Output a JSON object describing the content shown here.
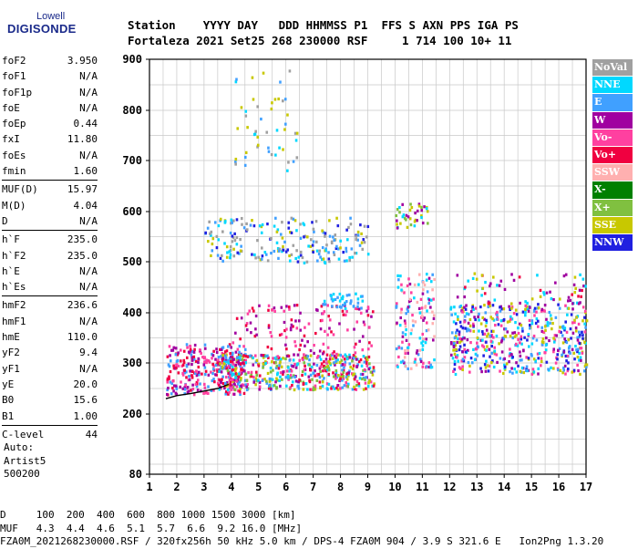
{
  "logo": {
    "top": "Lowell",
    "main": "DIGISONDE"
  },
  "header": {
    "labels": "Station    YYYY DAY   DDD HHMMSS P1  FFS S AXN PPS IGA PS",
    "values": "Fortaleza 2021 Set25 268 230000 RSF     1 714 100 10+ 11"
  },
  "params": {
    "group1": [
      {
        "k": "foF2",
        "v": "3.950"
      },
      {
        "k": "foF1",
        "v": "N/A"
      },
      {
        "k": "foF1p",
        "v": "N/A"
      },
      {
        "k": "foE",
        "v": "N/A"
      },
      {
        "k": "foEp",
        "v": "0.44"
      },
      {
        "k": "fxI",
        "v": "11.80"
      },
      {
        "k": "foEs",
        "v": "N/A"
      },
      {
        "k": "fmin",
        "v": "1.60"
      }
    ],
    "group2": [
      {
        "k": "MUF(D)",
        "v": "15.97"
      },
      {
        "k": "M(D)",
        "v": "4.04"
      },
      {
        "k": "D",
        "v": "N/A"
      }
    ],
    "group3": [
      {
        "k": "h`F",
        "v": "235.0"
      },
      {
        "k": "h`F2",
        "v": "235.0"
      },
      {
        "k": "h`E",
        "v": "N/A"
      },
      {
        "k": "h`Es",
        "v": "N/A"
      }
    ],
    "group4": [
      {
        "k": "hmF2",
        "v": "236.6"
      },
      {
        "k": "hmF1",
        "v": "N/A"
      },
      {
        "k": "hmE",
        "v": "110.0"
      },
      {
        "k": "yF2",
        "v": "9.4"
      },
      {
        "k": "yF1",
        "v": "N/A"
      },
      {
        "k": "yE",
        "v": "20.0"
      },
      {
        "k": "B0",
        "v": "15.6"
      },
      {
        "k": "B1",
        "v": "1.00"
      }
    ],
    "group5": [
      {
        "k": "C-level",
        "v": "44"
      }
    ],
    "auto_label": "Auto:",
    "artist": "Artist5",
    "artist_ver": "500200"
  },
  "bottom": {
    "d_row": "D     100  200  400  600  800 1000 1500 3000 [km]",
    "muf_row": "MUF   4.3  4.4  4.6  5.1  5.7  6.6  9.2 16.0 [MHz]",
    "file_row": "FZA0M_2021268230000.RSF / 320fx256h 50 kHz 5.0 km / DPS-4 FZA0M 904 / 3.9 S 321.6 E   Ion2Png 1.3.20"
  },
  "legend": [
    {
      "label": "NoVal",
      "color": "#a0a0a0"
    },
    {
      "label": "NNE",
      "color": "#00d8ff"
    },
    {
      "label": "E",
      "color": "#40a0ff"
    },
    {
      "label": "W",
      "color": "#a000a0"
    },
    {
      "label": "Vo-",
      "color": "#ff40a0"
    },
    {
      "label": "Vo+",
      "color": "#f00040"
    },
    {
      "label": "SSW",
      "color": "#ffb0b0"
    },
    {
      "label": "X-",
      "color": "#008000"
    },
    {
      "label": "X+",
      "color": "#80c040"
    },
    {
      "label": "SSE",
      "color": "#c8c800"
    },
    {
      "label": "NNW",
      "color": "#2020e0"
    }
  ],
  "chart_data": {
    "type": "scatter",
    "xlabel": "",
    "ylabel": "",
    "xlim": [
      1,
      17
    ],
    "ylim": [
      80,
      900
    ],
    "x_ticks": [
      "1",
      "2",
      "3",
      "4",
      "5",
      "6",
      "7",
      "8",
      "9",
      "10",
      "11",
      "12",
      "13",
      "14",
      "15",
      "16",
      "17"
    ],
    "y_ticks": [
      "80",
      "200",
      "300",
      "400",
      "500",
      "600",
      "700",
      "800",
      "900"
    ],
    "y_tick_values": [
      80,
      200,
      300,
      400,
      500,
      600,
      700,
      800,
      900
    ],
    "grid": true,
    "trace_color": "#000000",
    "trace": [
      [
        1.6,
        230
      ],
      [
        2.0,
        236
      ],
      [
        2.5,
        240
      ],
      [
        3.0,
        245
      ],
      [
        3.5,
        250
      ],
      [
        3.9,
        258
      ]
    ],
    "clusters": [
      {
        "x": [
          1.6,
          4.5
        ],
        "y": [
          240,
          340
        ],
        "colors": [
          "#a000a0",
          "#f00040",
          "#ff40a0",
          "#40a0ff"
        ],
        "n": 320
      },
      {
        "x": [
          3.5,
          9.2
        ],
        "y": [
          250,
          320
        ],
        "colors": [
          "#40a0ff",
          "#00d8ff",
          "#a000a0",
          "#f00040",
          "#ff40a0",
          "#c8c800",
          "#80c040"
        ],
        "n": 520
      },
      {
        "x": [
          4.0,
          9.2
        ],
        "y": [
          320,
          420
        ],
        "colors": [
          "#a000a0",
          "#ff40a0",
          "#f00040"
        ],
        "n": 130
      },
      {
        "x": [
          3.0,
          9.0
        ],
        "y": [
          500,
          590
        ],
        "colors": [
          "#40a0ff",
          "#00d8ff",
          "#c8c800",
          "#2020e0",
          "#a0a0a0"
        ],
        "n": 220
      },
      {
        "x": [
          7.3,
          8.8
        ],
        "y": [
          410,
          440
        ],
        "colors": [
          "#00d8ff",
          "#40a0ff"
        ],
        "n": 40
      },
      {
        "x": [
          4.0,
          6.5
        ],
        "y": [
          680,
          890
        ],
        "colors": [
          "#c8c800",
          "#40a0ff",
          "#00d8ff",
          "#a0a0a0"
        ],
        "n": 50
      },
      {
        "x": [
          10.0,
          11.4
        ],
        "y": [
          290,
          480
        ],
        "colors": [
          "#00d8ff",
          "#40a0ff",
          "#ff40a0",
          "#a000a0",
          "#ffb0b0"
        ],
        "n": 140
      },
      {
        "x": [
          10.0,
          11.3
        ],
        "y": [
          570,
          620
        ],
        "colors": [
          "#c8c800",
          "#a000a0",
          "#00d8ff",
          "#80c040"
        ],
        "n": 40
      },
      {
        "x": [
          12.0,
          17.0
        ],
        "y": [
          280,
          420
        ],
        "colors": [
          "#2020e0",
          "#40a0ff",
          "#a000a0",
          "#00d8ff",
          "#ff40a0",
          "#c8c800"
        ],
        "n": 520
      },
      {
        "x": [
          12.2,
          17.0
        ],
        "y": [
          420,
          480
        ],
        "colors": [
          "#a000a0",
          "#f00040",
          "#c8c800",
          "#00d8ff"
        ],
        "n": 70
      }
    ]
  }
}
